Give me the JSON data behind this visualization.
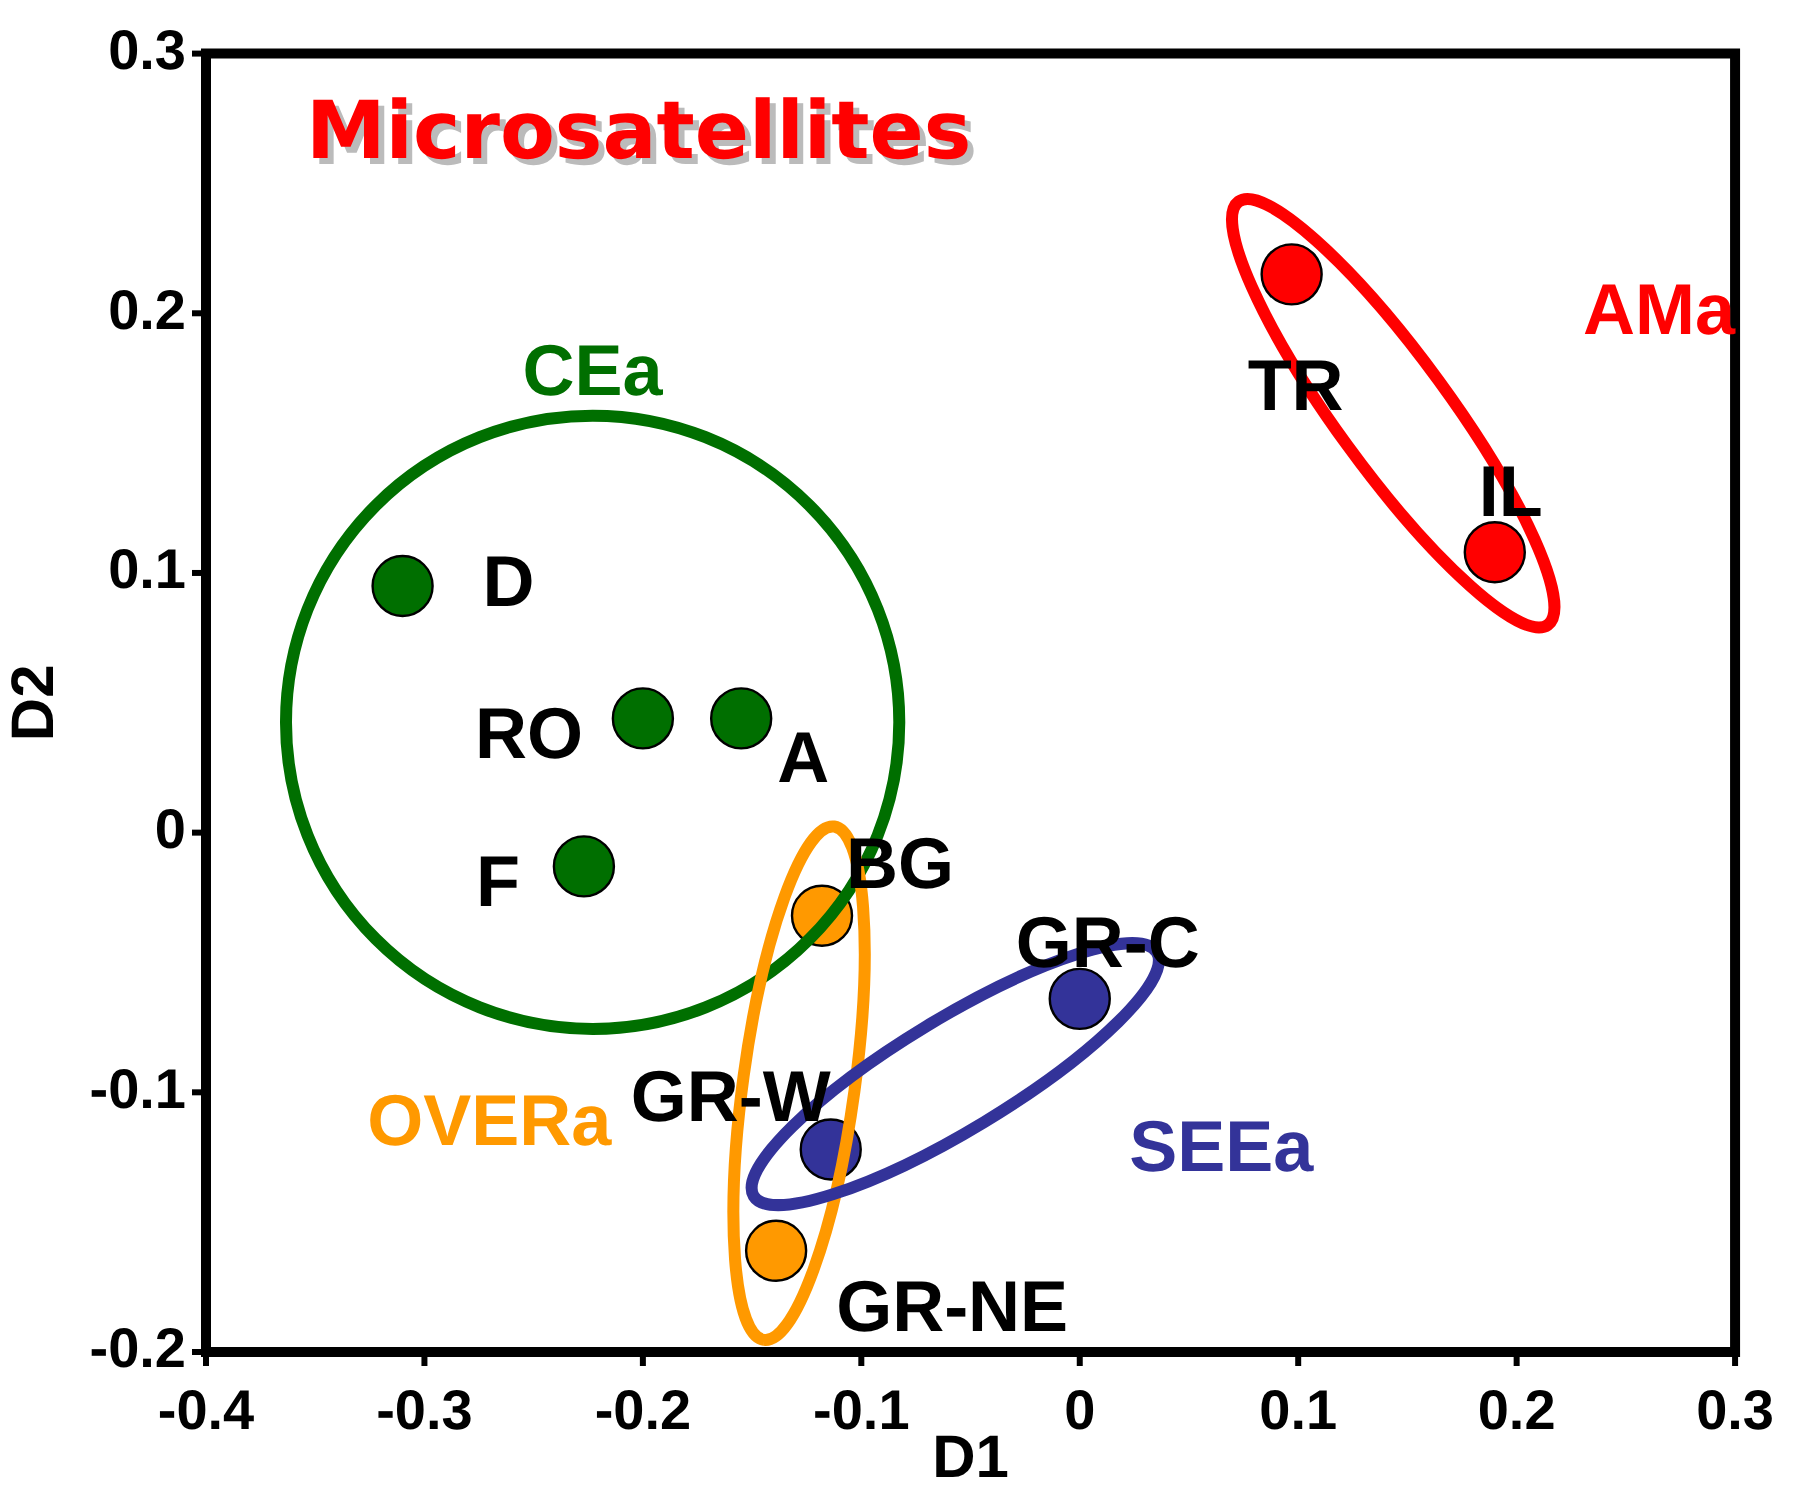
{
  "chart_data": {
    "type": "scatter",
    "title": "Microsatellites",
    "xlabel": "D1",
    "ylabel": "D2",
    "xlim": [
      -0.4,
      0.3
    ],
    "xticks": [
      -0.4,
      -0.3,
      -0.2,
      -0.1,
      0,
      0.1,
      0.2,
      0.3
    ],
    "ylim": [
      -0.2,
      0.3
    ],
    "yticks": [
      -0.2,
      -0.1,
      0,
      0.1,
      0.2,
      0.3
    ],
    "grid": false,
    "legend": false,
    "marker": "circle",
    "series": [
      {
        "name": "CEa",
        "color": "#006f00",
        "x": [
          -0.31,
          -0.2,
          -0.155,
          -0.227
        ],
        "values": [
          0.095,
          0.044,
          0.044,
          -0.013
        ]
      },
      {
        "name": "OVERa",
        "color": "#ff9900",
        "x": [
          -0.118,
          -0.139
        ],
        "values": [
          -0.032,
          -0.161
        ]
      },
      {
        "name": "SEEa",
        "color": "#333399",
        "x": [
          -0.114,
          0.0
        ],
        "values": [
          -0.122,
          -0.064
        ]
      },
      {
        "name": "AMa",
        "color": "#ff0000",
        "x": [
          0.097,
          0.19
        ],
        "values": [
          0.215,
          0.108
        ]
      }
    ],
    "annotations": [
      {
        "text": "D",
        "x": -0.31,
        "y": 0.095
      },
      {
        "text": "RO",
        "x": -0.2,
        "y": 0.044
      },
      {
        "text": "A",
        "x": -0.155,
        "y": 0.044
      },
      {
        "text": "F",
        "x": -0.227,
        "y": -0.013
      },
      {
        "text": "BG",
        "x": -0.118,
        "y": -0.032
      },
      {
        "text": "GR-W",
        "x": -0.114,
        "y": -0.122
      },
      {
        "text": "GR-NE",
        "x": -0.139,
        "y": -0.161
      },
      {
        "text": "GR-C",
        "x": 0.0,
        "y": -0.064
      },
      {
        "text": "TR",
        "x": 0.097,
        "y": 0.215
      },
      {
        "text": "IL",
        "x": 0.19,
        "y": 0.108
      }
    ]
  }
}
